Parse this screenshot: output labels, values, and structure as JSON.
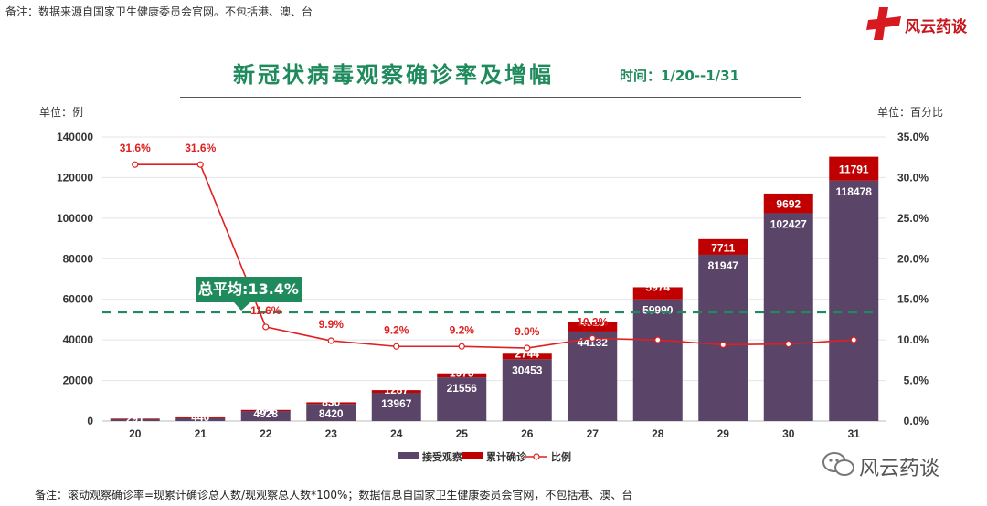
{
  "header": {
    "top_note": "备注：数据来源自国家卫生健康委员会官网。不包括港、澳、台",
    "logo_text": "风云药谈",
    "title": "新冠状病毒观察确诊率及增幅",
    "subtitle": "时间：1/20--1/31",
    "unit_left": "单位：例",
    "unit_right": "单位：百分比"
  },
  "average": {
    "label": "总平均:13.4%",
    "value": 13.4,
    "color": "#1f8a5c"
  },
  "footer": {
    "note": "备注：滚动观察确诊率=现累计确诊总人数/现观察总人数*100%；数据信息自国家卫生健康委员会官网，不包括港、澳、台",
    "wechat_label": "风云药谈"
  },
  "chart_data": {
    "type": "bar",
    "categories": [
      "20",
      "21",
      "22",
      "23",
      "24",
      "25",
      "26",
      "27",
      "28",
      "29",
      "30",
      "31"
    ],
    "series": [
      {
        "name": "接受观察",
        "color": "#5a4468",
        "kind": "stacked-bar",
        "values": [
          922,
          1394,
          4928,
          8420,
          13967,
          21556,
          30453,
          44132,
          59990,
          81947,
          102427,
          118478
        ]
      },
      {
        "name": "累计确诊",
        "color": "#c00000",
        "kind": "stacked-bar",
        "values": [
          291,
          440,
          571,
          830,
          1287,
          1975,
          2744,
          4515,
          5974,
          7711,
          9692,
          11791
        ]
      },
      {
        "name": "比例",
        "color": "#e02020",
        "kind": "line",
        "axis": "right",
        "values": [
          31.6,
          31.6,
          11.6,
          9.9,
          9.2,
          9.2,
          9.0,
          10.2,
          10.0,
          9.4,
          9.5,
          10.0
        ]
      }
    ],
    "point_labels": [
      "31.6%",
      "31.6%",
      "11.6%",
      "9.9%",
      "9.2%",
      "9.2%",
      "9.0%",
      "10.2%",
      "",
      "",
      "",
      ""
    ],
    "y_left": {
      "min": 0,
      "max": 140000,
      "ticks": [
        "0",
        "20000",
        "40000",
        "60000",
        "80000",
        "100000",
        "120000",
        "140000"
      ]
    },
    "y_right": {
      "min": 0,
      "max": 35,
      "ticks": [
        "0.0%",
        "5.0%",
        "10.0%",
        "15.0%",
        "20.0%",
        "25.0%",
        "30.0%",
        "35.0%"
      ]
    },
    "reference_line": {
      "value": 13.4,
      "axis": "right",
      "style": "dashed",
      "color": "#1f8a5c"
    },
    "grid": true,
    "legend": "bottom-center"
  }
}
